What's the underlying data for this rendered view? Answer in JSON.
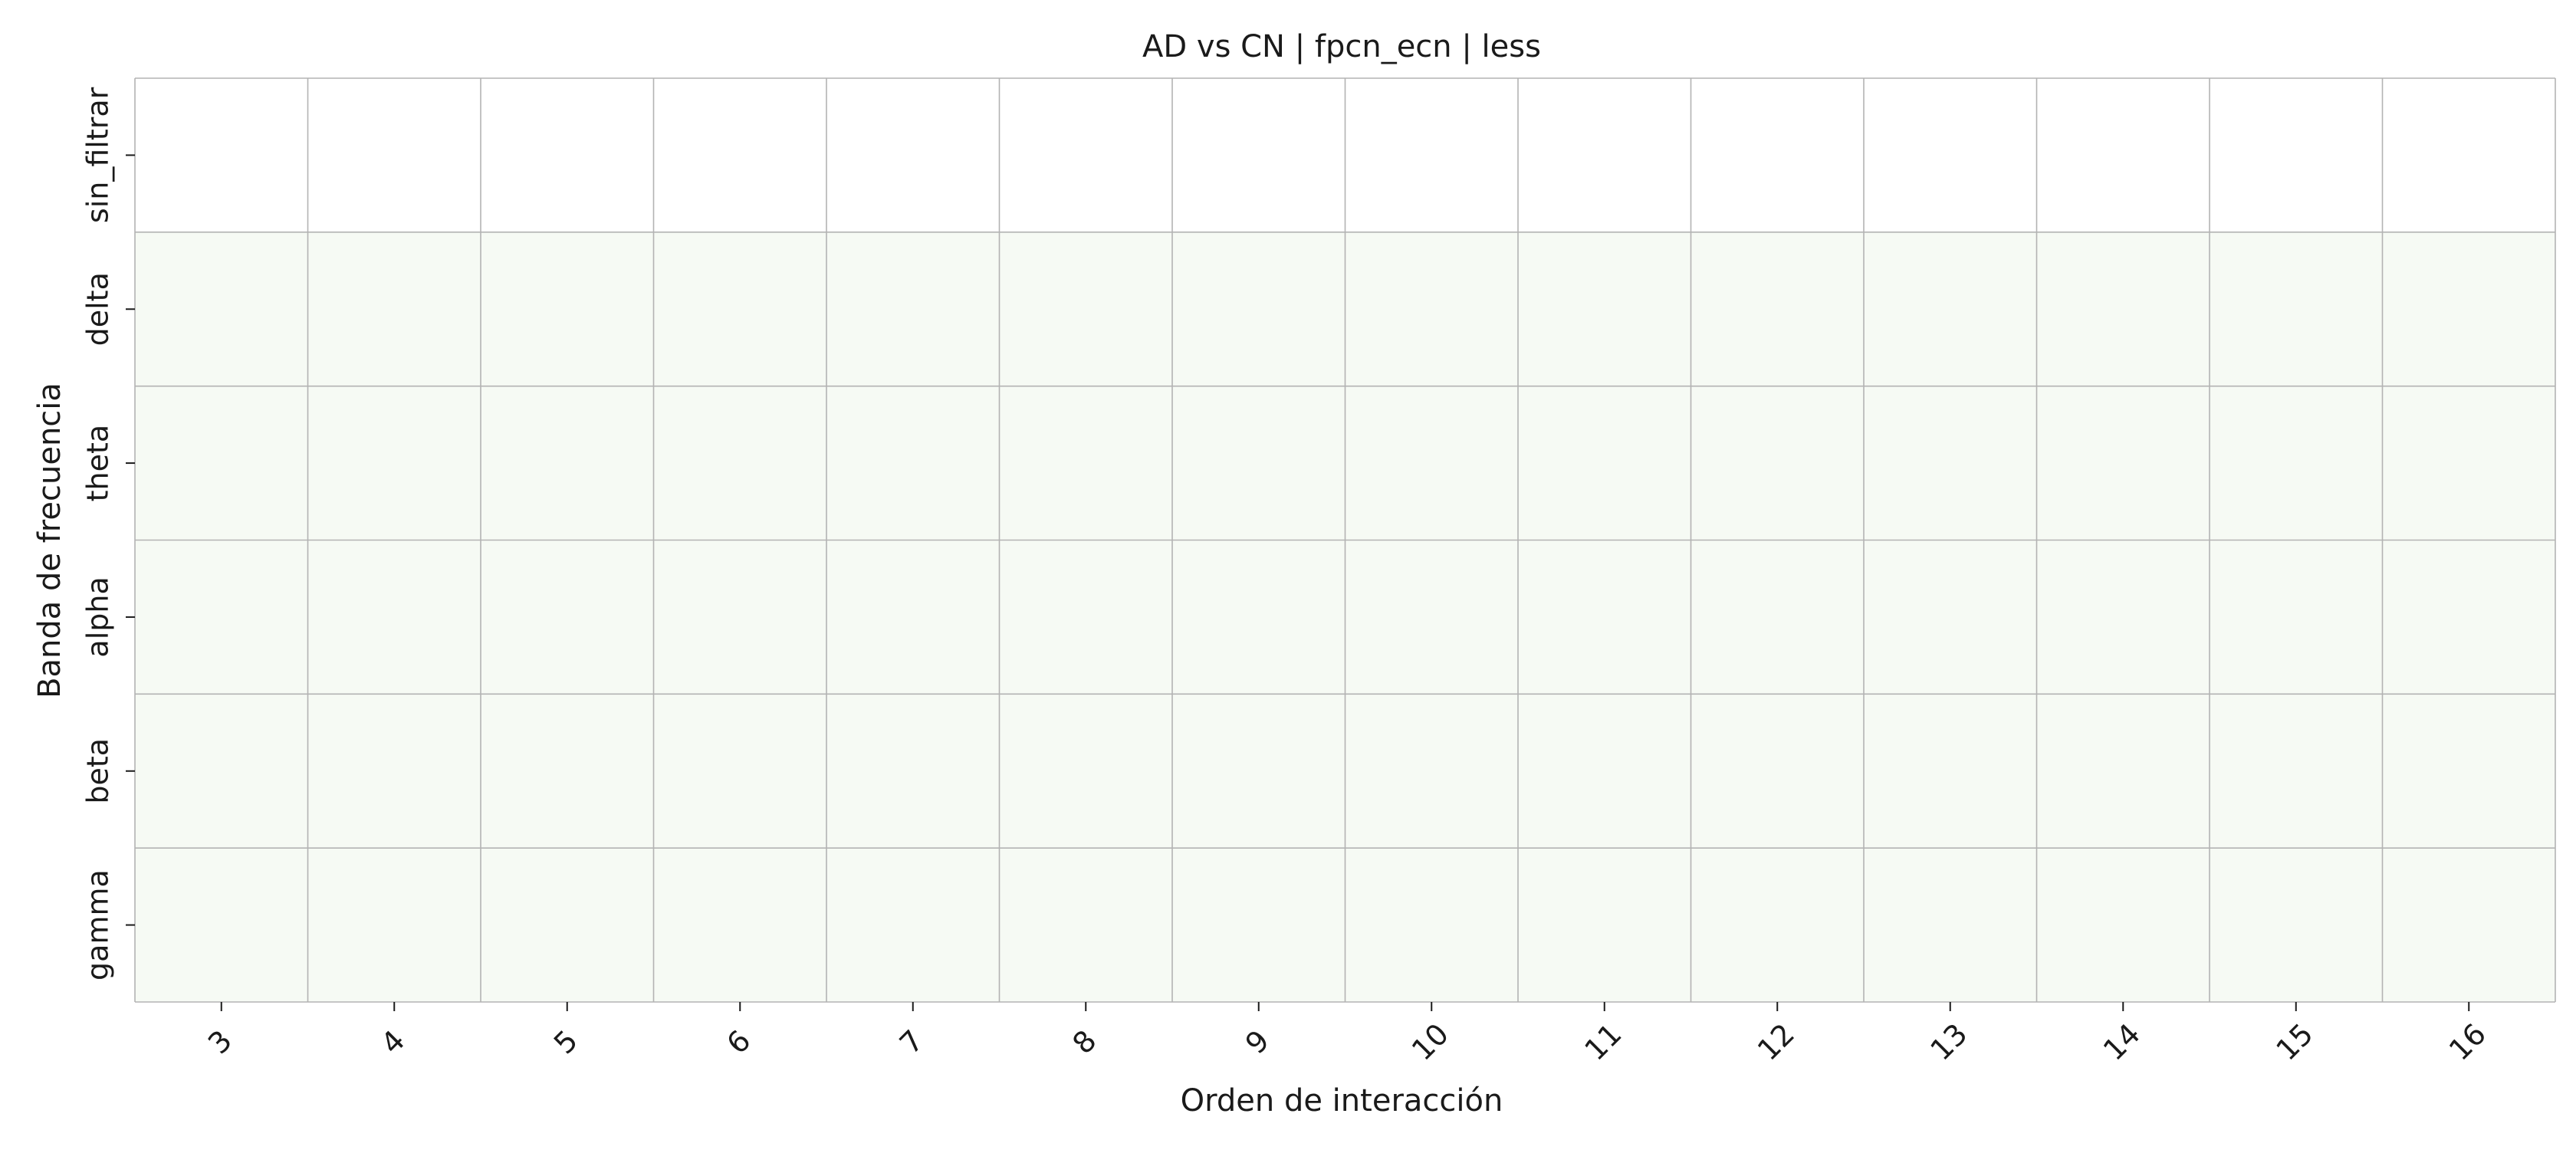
{
  "chart_data": {
    "type": "heatmap",
    "title": "AD vs CN | fpcn_ecn | less",
    "xlabel": "Orden de interacción",
    "ylabel": "Banda de frecuencia",
    "x_categories": [
      "3",
      "4",
      "5",
      "6",
      "7",
      "8",
      "9",
      "10",
      "11",
      "12",
      "13",
      "14",
      "15",
      "16"
    ],
    "y_categories": [
      "sin_filtrar",
      "delta",
      "theta",
      "alpha",
      "beta",
      "gamma"
    ],
    "row_colors": [
      "#ffffff",
      "#f6faf4",
      "#f6faf4",
      "#f6faf4",
      "#f6faf4",
      "#f6faf4"
    ],
    "grid": true,
    "grid_color": "#b3b3b3",
    "colorbar": false
  }
}
